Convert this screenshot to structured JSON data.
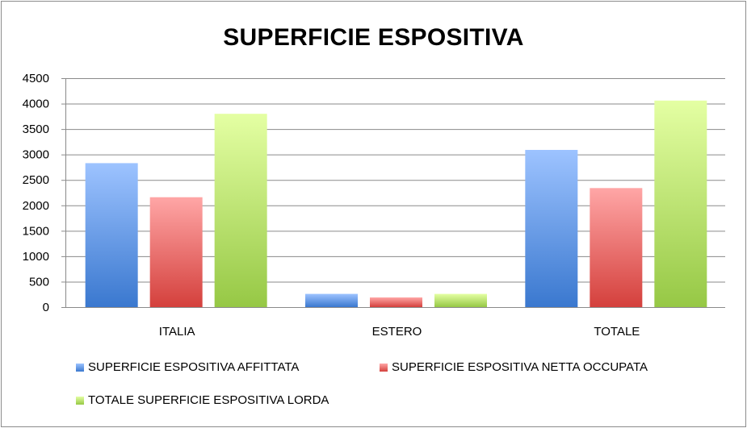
{
  "chart_data": {
    "type": "bar",
    "title": "SUPERFICIE ESPOSITIVA",
    "xlabel": "",
    "ylabel": "",
    "categories": [
      "ITALIA",
      "ESTERO",
      "TOTALE"
    ],
    "ylim": [
      0,
      4500
    ],
    "yticks": [
      0,
      500,
      1000,
      1500,
      2000,
      2500,
      3000,
      3500,
      4000,
      4500
    ],
    "grid": true,
    "legend_position": "bottom",
    "series": [
      {
        "name": "SUPERFICIE ESPOSITIVA AFFITTATA",
        "values": [
          2830,
          260,
          3090
        ],
        "color": "#4f81bd",
        "color_light": "#9dc3ff",
        "color_dark": "#3a78cf"
      },
      {
        "name": "SUPERFICIE ESPOSITIVA NETTA OCCUPATA",
        "values": [
          2160,
          190,
          2340
        ],
        "color": "#c0504d",
        "color_light": "#ffa6a6",
        "color_dark": "#d4403c"
      },
      {
        "name": "TOTALE SUPERFICIE ESPOSITIVA LORDA",
        "values": [
          3800,
          260,
          4060
        ],
        "color": "#9bbb59",
        "color_light": "#e4ffa3",
        "color_dark": "#96c845"
      }
    ]
  }
}
